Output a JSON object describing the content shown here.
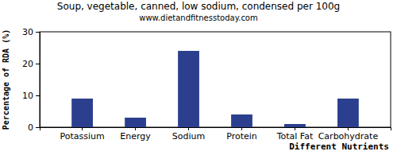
{
  "chart_data": {
    "type": "bar",
    "title": "Soup, vegetable, canned, low sodium, condensed per 100g",
    "subtitle": "www.dietandfitnesstoday.com",
    "x_label": "Different Nutrients",
    "y_label": "Percentage of RDA (%)",
    "categories": [
      "Potassium",
      "Energy",
      "Sodium",
      "Protein",
      "Total Fat",
      "Carbohydrate"
    ],
    "values": [
      9,
      3,
      24,
      4,
      1,
      9
    ],
    "color": "#2b3f8e",
    "ylim": [
      0,
      30
    ],
    "yticks": [
      0,
      10,
      20,
      30
    ],
    "grid": false
  }
}
